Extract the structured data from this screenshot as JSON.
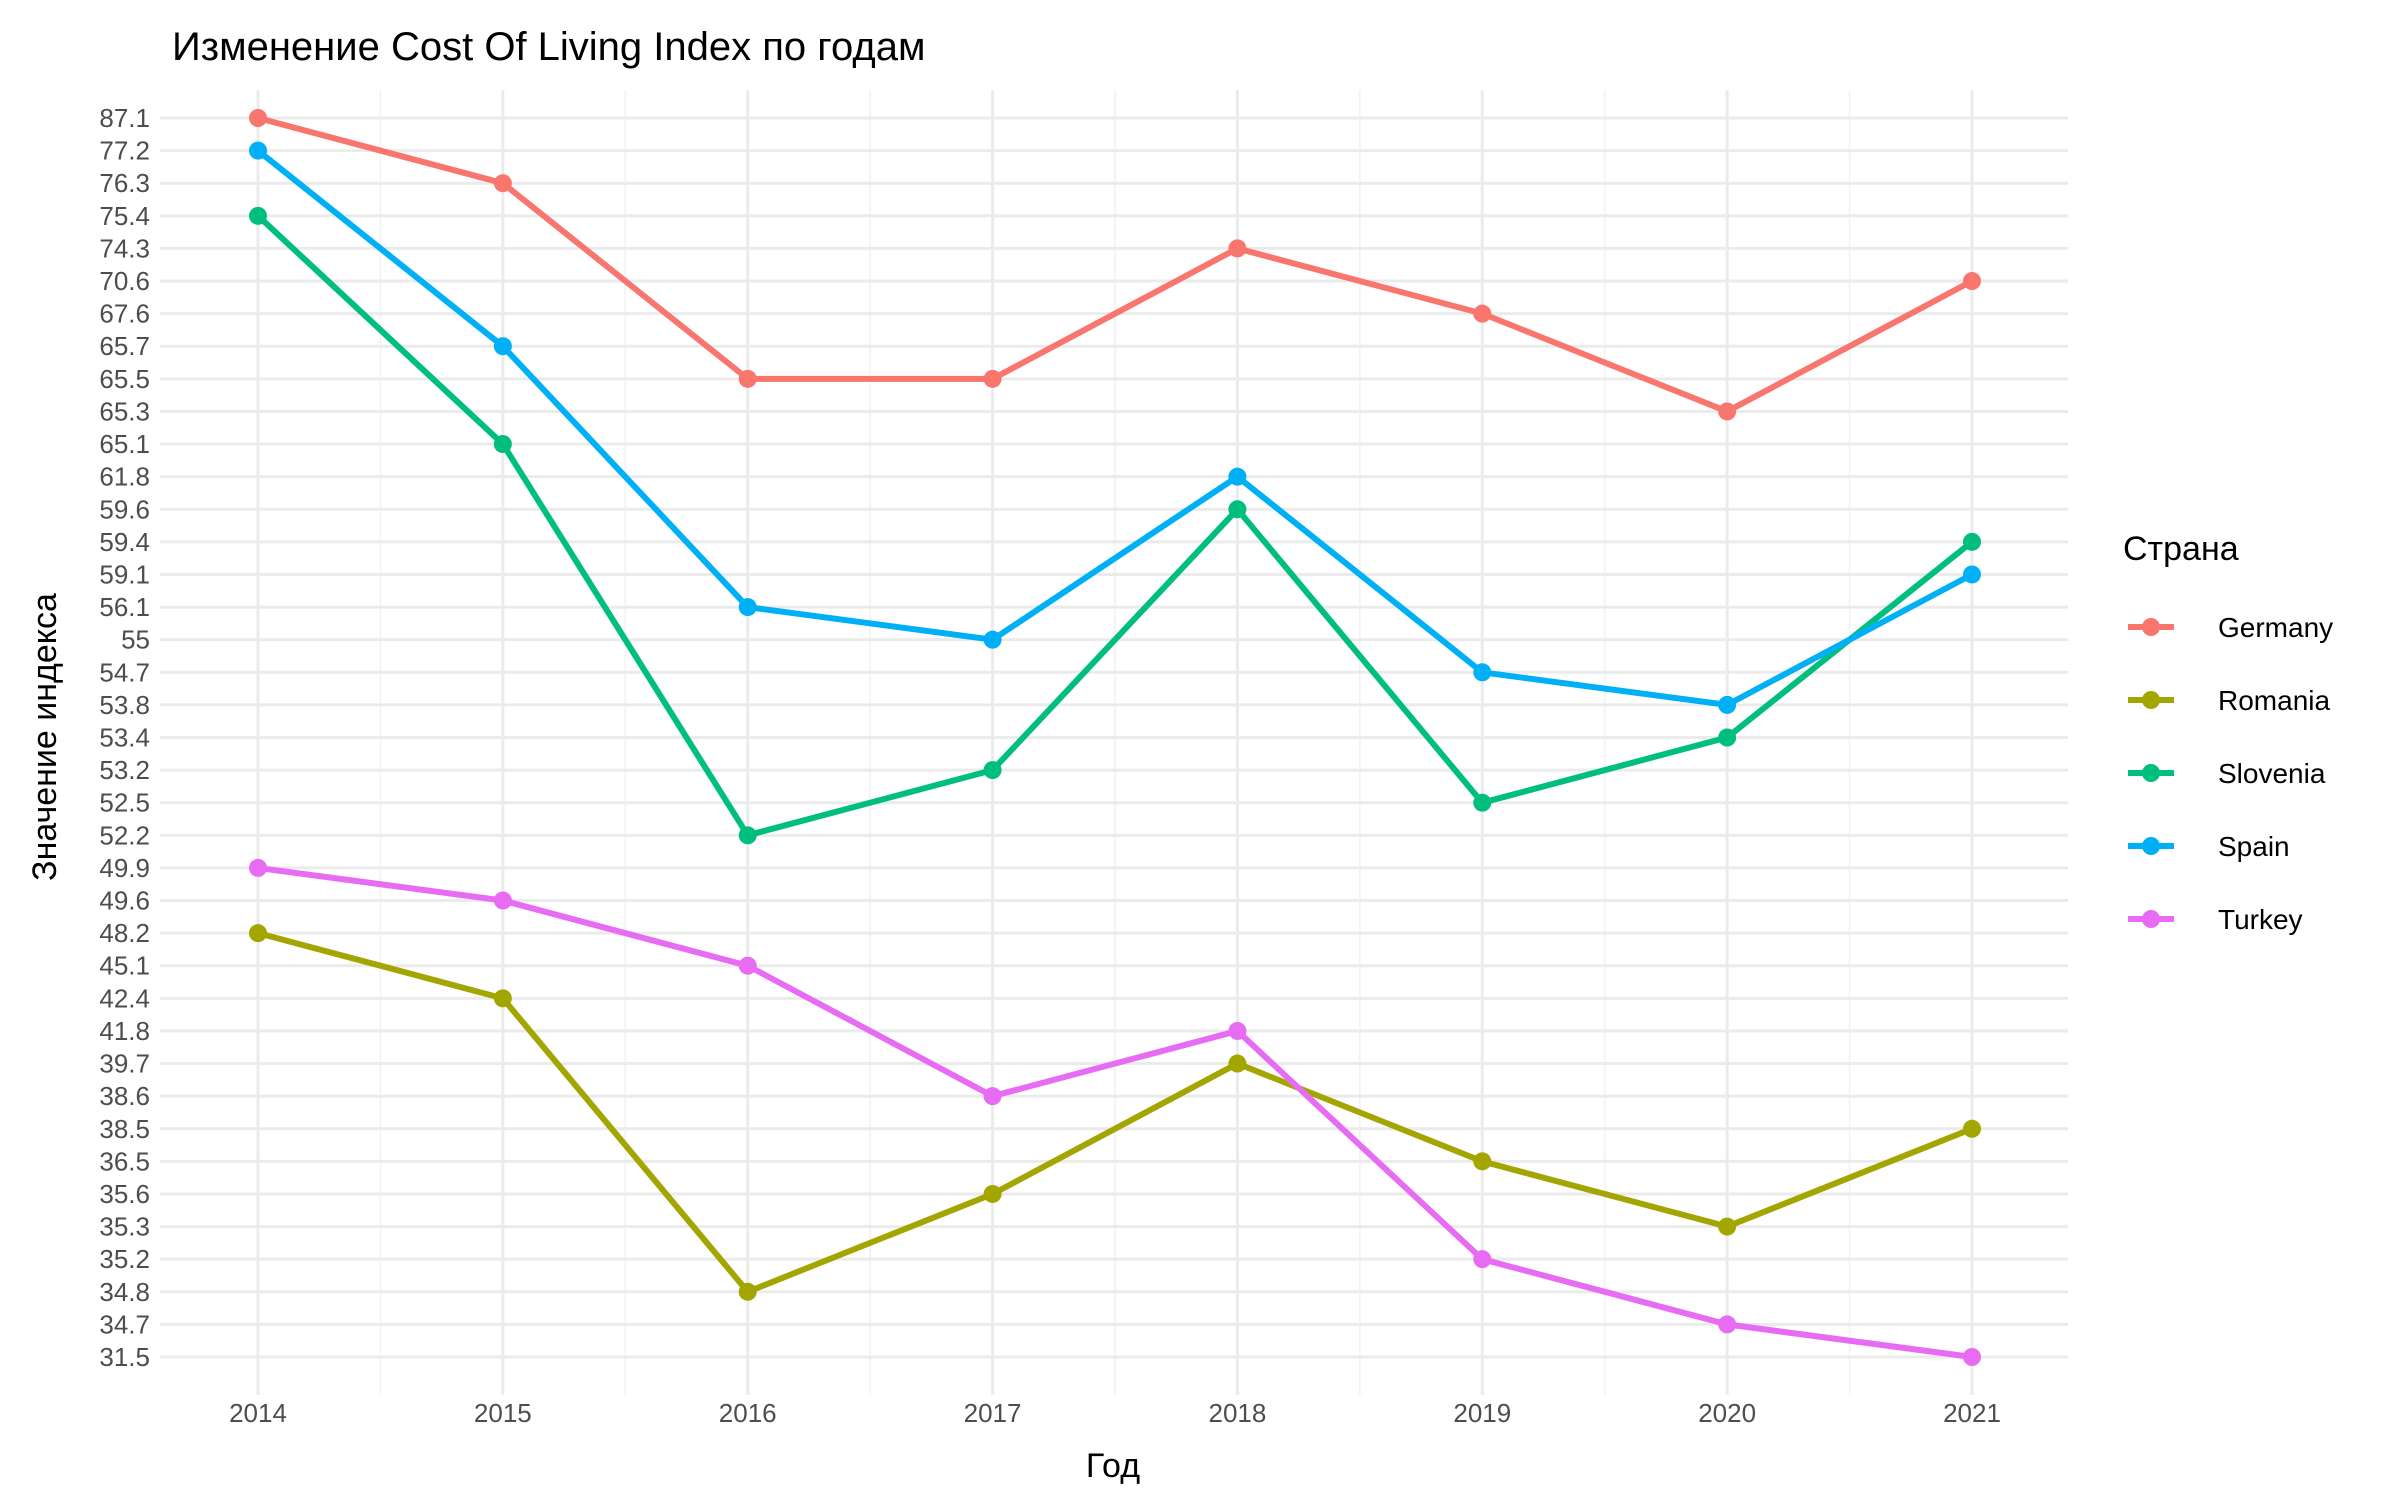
{
  "chart_data": {
    "type": "line",
    "title": "Изменение Cost Of Living Index по годам",
    "xlabel": "Год",
    "ylabel": "Значение индекса",
    "legend_title": "Страна",
    "legend_position": "right",
    "y_scale": "discrete",
    "grid": true,
    "categories": [
      "2014",
      "2015",
      "2016",
      "2017",
      "2018",
      "2019",
      "2020",
      "2021"
    ],
    "y_levels": [
      "31.5",
      "34.7",
      "34.8",
      "35.2",
      "35.3",
      "35.6",
      "36.5",
      "38.5",
      "38.6",
      "39.7",
      "41.8",
      "42.4",
      "45.1",
      "48.2",
      "49.6",
      "49.9",
      "52.2",
      "52.5",
      "53.2",
      "53.4",
      "53.8",
      "54.7",
      "55",
      "56.1",
      "59.1",
      "59.4",
      "59.6",
      "61.8",
      "65.1",
      "65.3",
      "65.5",
      "65.7",
      "67.6",
      "70.6",
      "74.3",
      "75.4",
      "76.3",
      "77.2",
      "87.1"
    ],
    "series": [
      {
        "name": "Germany",
        "color": "#F8766D",
        "values": [
          "87.1",
          "76.3",
          "65.5",
          "65.5",
          "74.3",
          "67.6",
          "65.3",
          "70.6"
        ]
      },
      {
        "name": "Romania",
        "color": "#A3A500",
        "values": [
          "48.2",
          "42.4",
          "34.8",
          "35.6",
          "39.7",
          "36.5",
          "35.3",
          "38.5"
        ]
      },
      {
        "name": "Slovenia",
        "color": "#00BF7D",
        "values": [
          "75.4",
          "65.1",
          "52.2",
          "53.2",
          "59.6",
          "52.5",
          "53.4",
          "59.4"
        ]
      },
      {
        "name": "Spain",
        "color": "#00B0F6",
        "values": [
          "77.2",
          "65.7",
          "56.1",
          "55",
          "61.8",
          "54.7",
          "53.8",
          "59.1"
        ]
      },
      {
        "name": "Turkey",
        "color": "#E76BF3",
        "values": [
          "49.9",
          "49.6",
          "45.1",
          "38.6",
          "41.8",
          "35.2",
          "34.7",
          "31.5"
        ]
      }
    ]
  }
}
